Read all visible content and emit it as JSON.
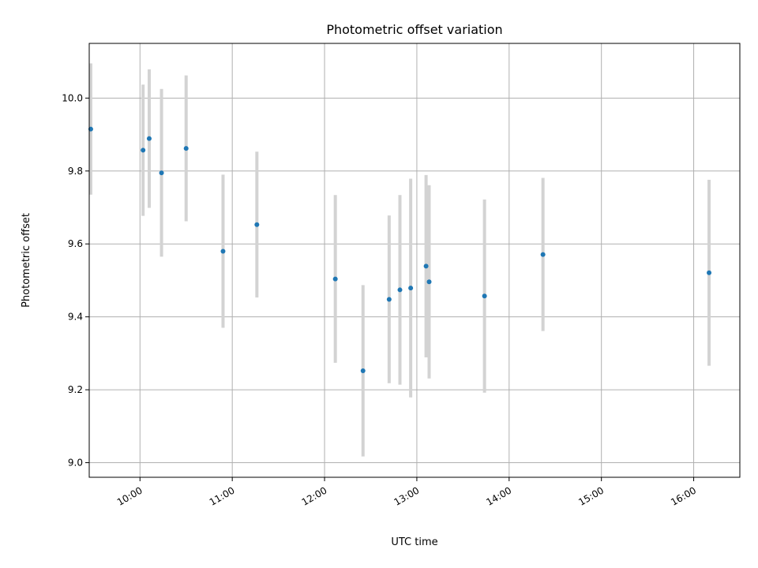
{
  "chart_data": {
    "type": "scatter",
    "title": "Photometric offset variation",
    "xlabel": "UTC time",
    "ylabel": "Photometric offset",
    "xlim": [
      "09:27",
      "16:30"
    ],
    "ylim": [
      8.96,
      10.15
    ],
    "xticks": [
      "10:00",
      "11:00",
      "12:00",
      "13:00",
      "14:00",
      "15:00",
      "16:00"
    ],
    "yticks": [
      "9.0",
      "9.2",
      "9.4",
      "9.6",
      "9.8",
      "10.0"
    ],
    "grid": true,
    "marker_color": "#1f77b4",
    "errorbar_color": "#d3d3d3",
    "points": [
      {
        "x": "09:28",
        "y": 9.915,
        "err": 0.18
      },
      {
        "x": "10:02",
        "y": 9.857,
        "err": 0.18
      },
      {
        "x": "10:06",
        "y": 9.889,
        "err": 0.19
      },
      {
        "x": "10:14",
        "y": 9.795,
        "err": 0.23
      },
      {
        "x": "10:30",
        "y": 9.862,
        "err": 0.2
      },
      {
        "x": "10:54",
        "y": 9.58,
        "err": 0.21
      },
      {
        "x": "11:16",
        "y": 9.653,
        "err": 0.2
      },
      {
        "x": "12:07",
        "y": 9.504,
        "err": 0.23
      },
      {
        "x": "12:25",
        "y": 9.252,
        "err": 0.235
      },
      {
        "x": "12:42",
        "y": 9.448,
        "err": 0.23
      },
      {
        "x": "12:49",
        "y": 9.474,
        "err": 0.26
      },
      {
        "x": "12:56",
        "y": 9.479,
        "err": 0.3
      },
      {
        "x": "13:06",
        "y": 9.539,
        "err": 0.25
      },
      {
        "x": "13:08",
        "y": 9.496,
        "err": 0.265
      },
      {
        "x": "13:44",
        "y": 9.457,
        "err": 0.265
      },
      {
        "x": "14:22",
        "y": 9.571,
        "err": 0.21
      },
      {
        "x": "16:10",
        "y": 9.521,
        "err": 0.255
      }
    ]
  }
}
